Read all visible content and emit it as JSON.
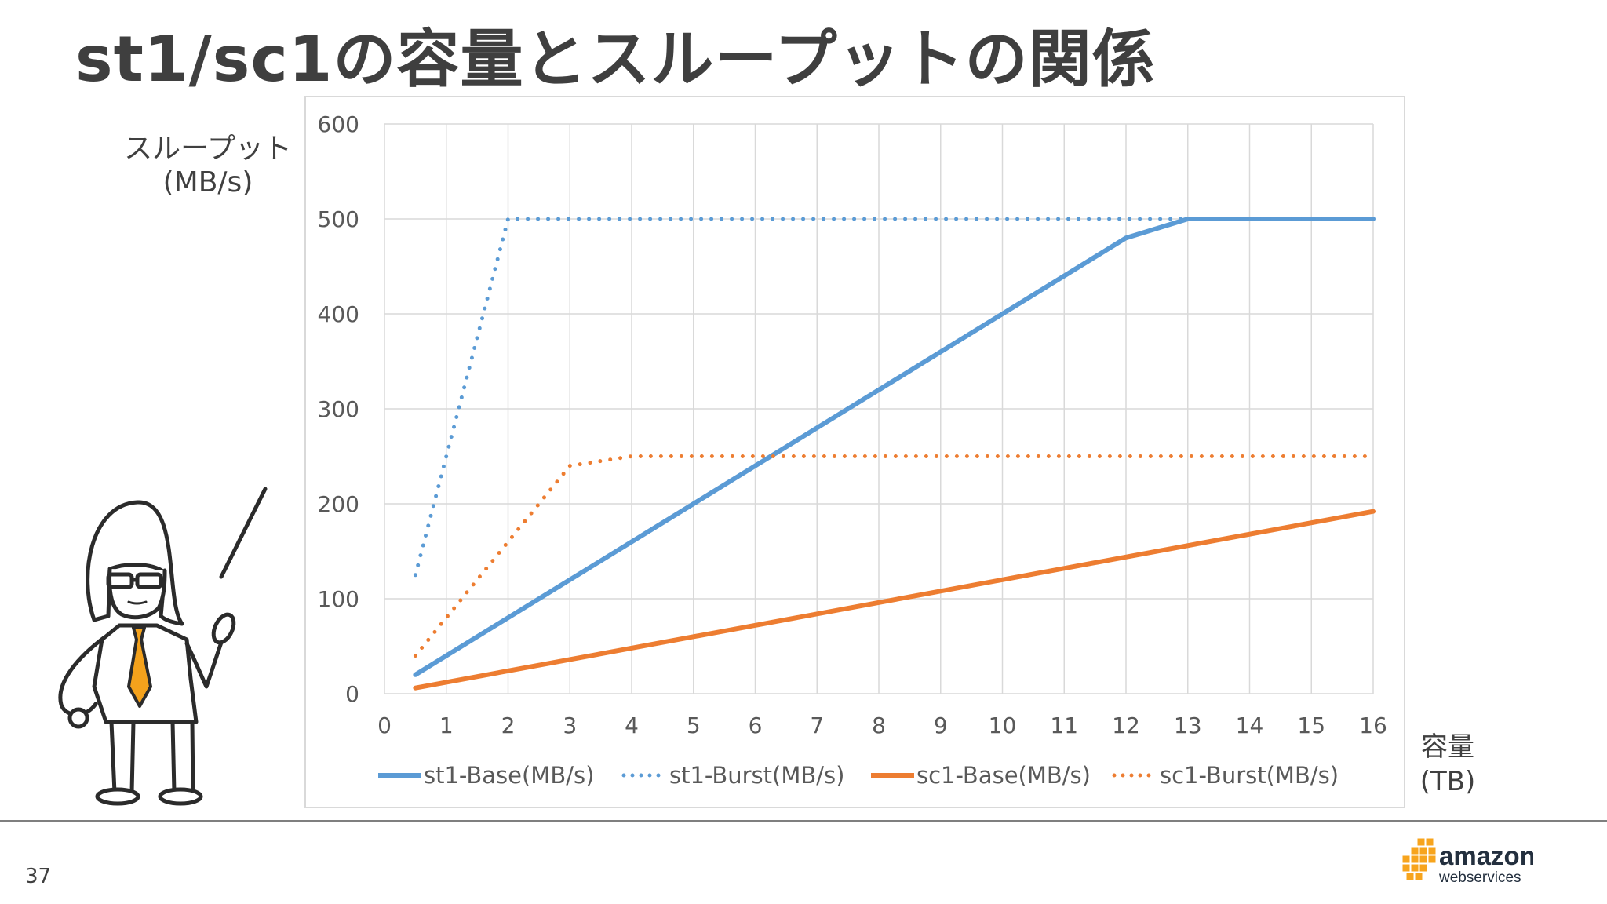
{
  "title": "st1/sc1の容量とスループットの関係",
  "y_axis_title": [
    "スループット",
    "(MB/s)"
  ],
  "x_axis_title": [
    "容量",
    "(TB)"
  ],
  "page_number": "37",
  "logo": {
    "line1": "amazon",
    "line2": "webservices"
  },
  "colors": {
    "blue": "#5b9bd5",
    "orange": "#ed7d31",
    "grid": "#d9d9d9",
    "tie": "#f4a21c"
  },
  "chart_data": {
    "type": "line",
    "xlim": [
      0,
      16
    ],
    "ylim": [
      0,
      600
    ],
    "x_ticks": [
      0,
      1,
      2,
      3,
      4,
      5,
      6,
      7,
      8,
      9,
      10,
      11,
      12,
      13,
      14,
      15,
      16
    ],
    "y_ticks": [
      0,
      100,
      200,
      300,
      400,
      500,
      600
    ],
    "grid": true,
    "legend_position": "bottom",
    "series": [
      {
        "name": "st1-Base(MB/s)",
        "color": "#5b9bd5",
        "style": "solid",
        "points": [
          [
            0.5,
            20
          ],
          [
            12,
            480
          ],
          [
            13,
            500
          ],
          [
            16,
            500
          ]
        ]
      },
      {
        "name": "st1-Burst(MB/s)",
        "color": "#5b9bd5",
        "style": "dotted",
        "points": [
          [
            0.5,
            125
          ],
          [
            2,
            500
          ],
          [
            16,
            500
          ]
        ]
      },
      {
        "name": "sc1-Base(MB/s)",
        "color": "#ed7d31",
        "style": "solid",
        "points": [
          [
            0.5,
            6
          ],
          [
            16,
            192
          ]
        ]
      },
      {
        "name": "sc1-Burst(MB/s)",
        "color": "#ed7d31",
        "style": "dotted",
        "points": [
          [
            0.5,
            40
          ],
          [
            3,
            240
          ],
          [
            4,
            250
          ],
          [
            16,
            250
          ]
        ]
      }
    ]
  }
}
